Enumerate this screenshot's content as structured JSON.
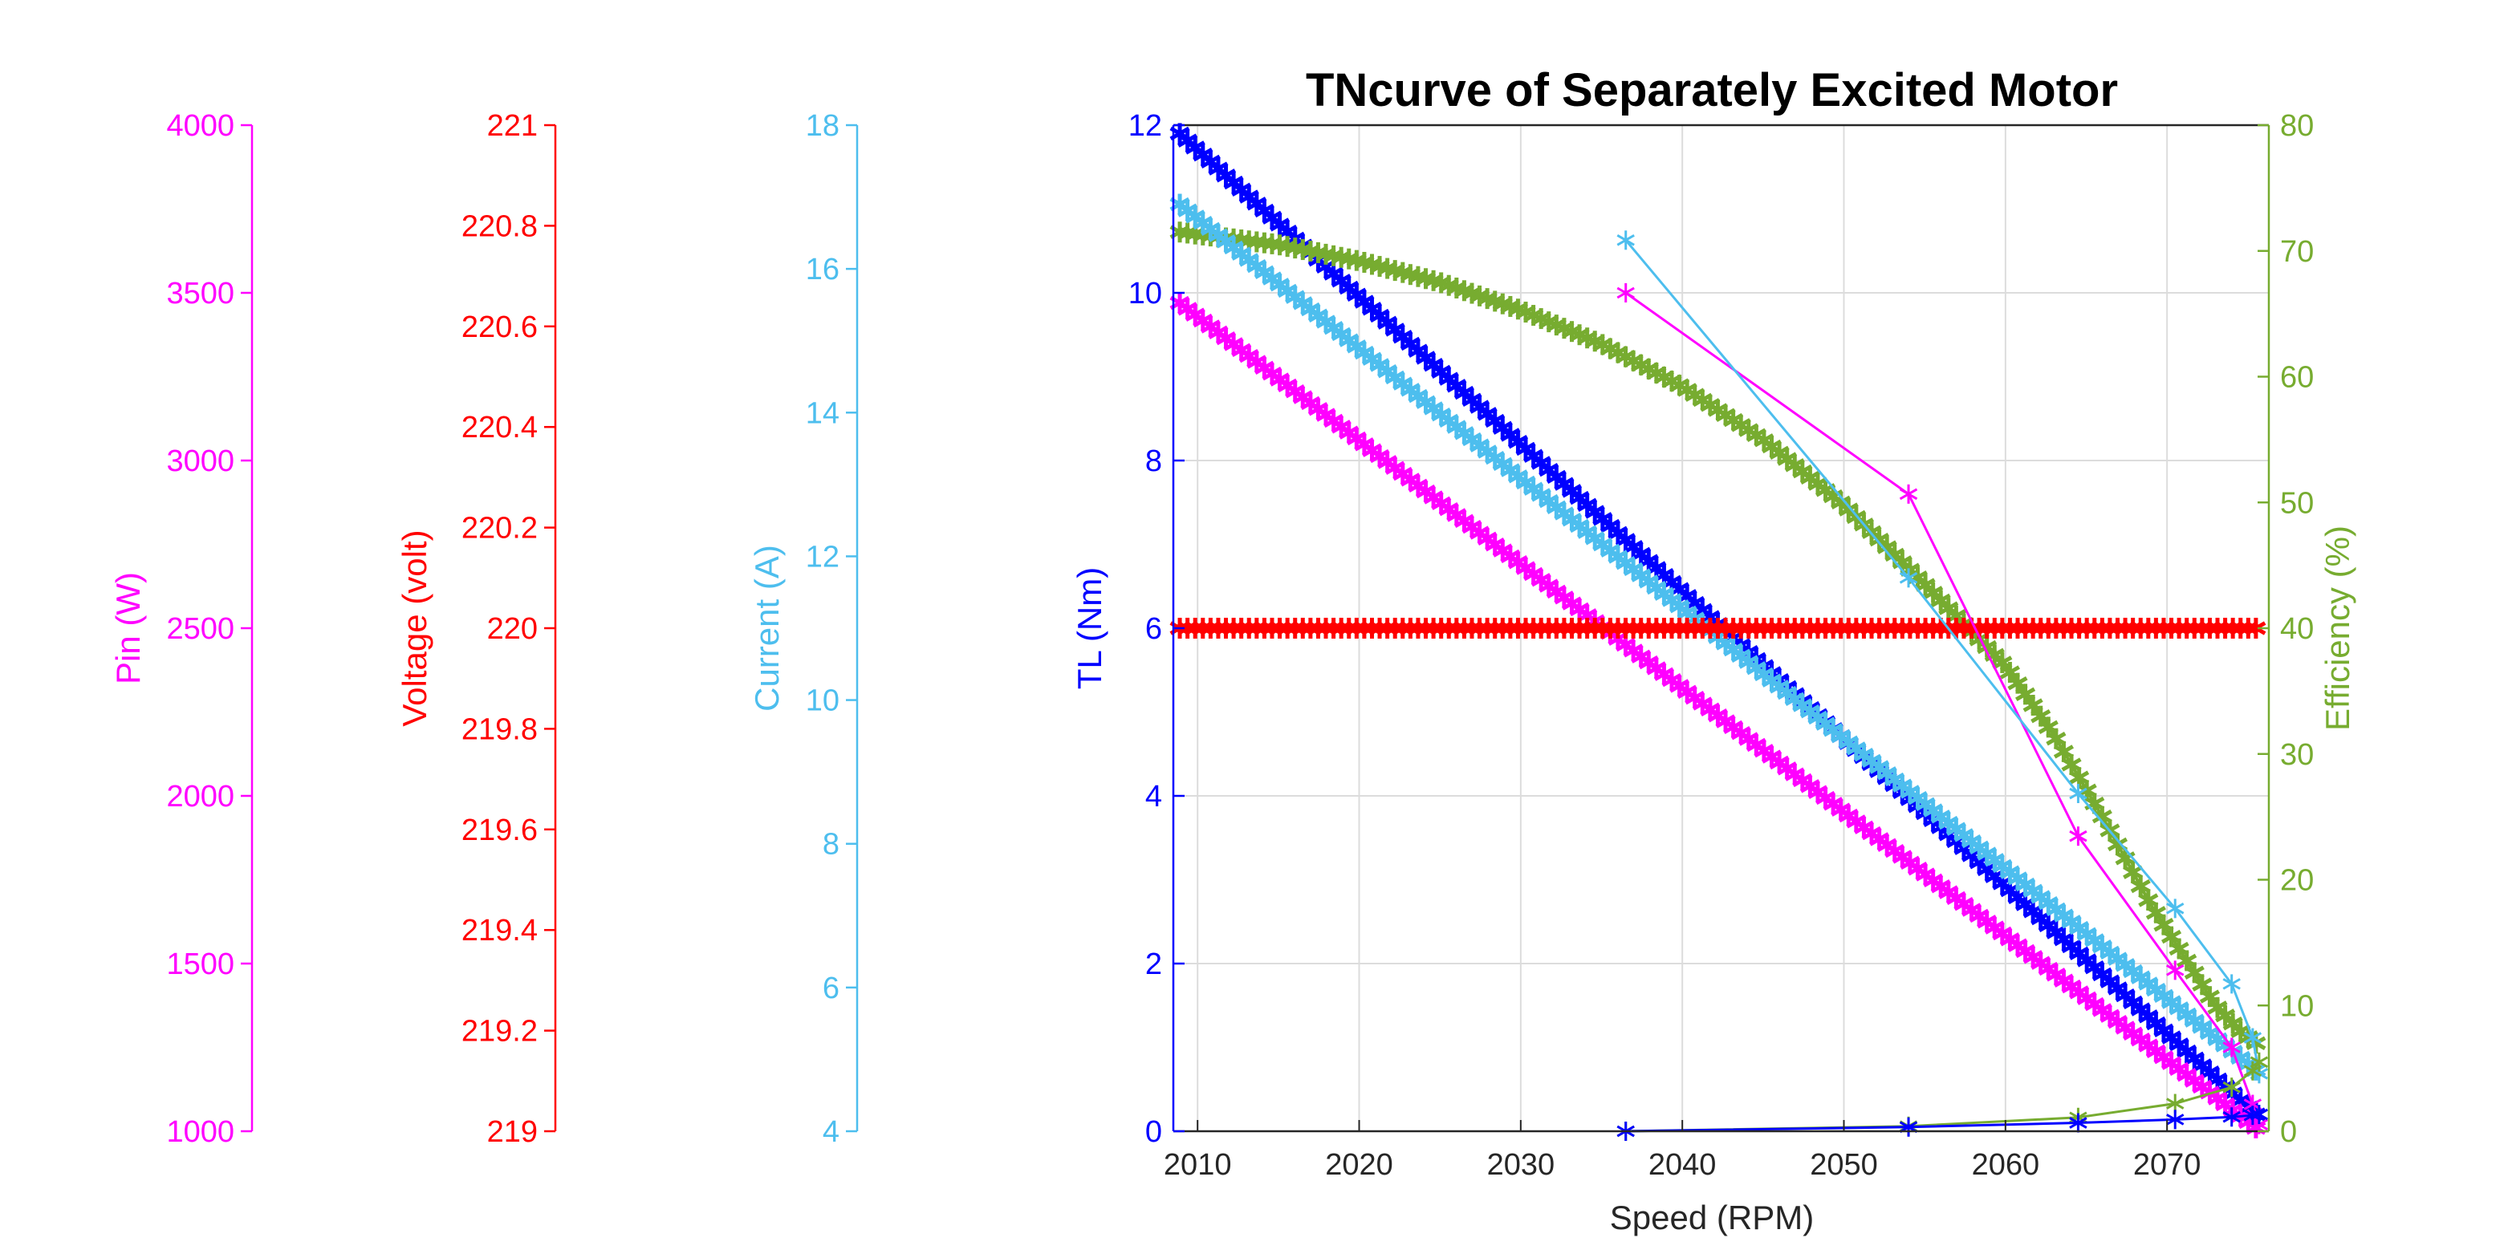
{
  "chart_data": {
    "type": "line",
    "title": "TNcurve of Separately Excited Motor",
    "xlabel": "Speed (RPM)",
    "xlim": [
      2008.5,
      2076.3
    ],
    "xticks": [
      2010,
      2020,
      2030,
      2040,
      2050,
      2060,
      2070
    ],
    "grid": true,
    "axes": [
      {
        "id": "tl",
        "label": "TL (Nm)",
        "color": "#0000ff",
        "side": "left",
        "range": [
          0,
          12
        ],
        "ticks": [
          0,
          2,
          4,
          6,
          8,
          10,
          12
        ]
      },
      {
        "id": "eff",
        "label": "Efficiency (%)",
        "color": "#77ac30",
        "side": "right",
        "range": [
          0,
          80
        ],
        "ticks": [
          0,
          10,
          20,
          30,
          40,
          50,
          60,
          70,
          80
        ]
      },
      {
        "id": "cur",
        "label": "Current (A)",
        "color": "#4dbeee",
        "side": "left-offset",
        "range": [
          4,
          18
        ],
        "ticks": [
          4,
          6,
          8,
          10,
          12,
          14,
          16,
          18
        ]
      },
      {
        "id": "volt",
        "label": "Voltage (volt)",
        "color": "#ff0000",
        "side": "left-offset",
        "range": [
          219,
          221
        ],
        "ticks": [
          "219",
          "219.2",
          "219.4",
          "219.6",
          "219.8",
          "220",
          "220.2",
          "220.4",
          "220.6",
          "220.8",
          "221"
        ]
      },
      {
        "id": "pin",
        "label": "Pin (W)",
        "color": "#ff00ff",
        "side": "left-offset",
        "range": [
          1000,
          4000
        ],
        "ticks": [
          1000,
          1500,
          2000,
          2500,
          3000,
          3500,
          4000
        ]
      }
    ],
    "series": [
      {
        "axis": "tl",
        "color": "#0000ff",
        "marker": "asterisk",
        "dense": true,
        "x": [
          2008.9,
          2075.5
        ],
        "y": [
          11.9,
          0.2
        ]
      },
      {
        "axis": "eff",
        "color": "#77ac30",
        "marker": "asterisk",
        "dense": true,
        "x": [
          2008.9,
          2015,
          2020,
          2025,
          2030,
          2035,
          2040,
          2045,
          2050,
          2055,
          2060,
          2063,
          2066,
          2069,
          2071,
          2073,
          2074.5,
          2075.5
        ],
        "y": [
          71.5,
          70.5,
          69.2,
          67.5,
          65.3,
          62.6,
          59.2,
          55.0,
          49.8,
          43.5,
          37.0,
          31.5,
          25.0,
          18.0,
          14.0,
          10.0,
          8.0,
          7.0
        ]
      },
      {
        "axis": "cur",
        "color": "#4dbeee",
        "marker": "asterisk",
        "dense": true,
        "x": [
          2008.9,
          2075.5
        ],
        "y": [
          16.9,
          4.85
        ]
      },
      {
        "axis": "pin",
        "color": "#ff00ff",
        "marker": "asterisk",
        "dense": true,
        "x": [
          2008.9,
          2075.5
        ],
        "y": [
          3470,
          1010
        ]
      },
      {
        "axis": "volt",
        "color": "#ff0000",
        "marker": "asterisk",
        "dense": true,
        "x": [
          2008.9,
          2075.5
        ],
        "y": [
          220,
          220
        ]
      },
      {
        "axis": "pin",
        "color": "#ff00ff",
        "marker": "asterisk",
        "dense": false,
        "x": [
          2036.5,
          2054.0,
          2064.5,
          2070.5,
          2074.0,
          2075.3,
          2075.7
        ],
        "y": [
          3500,
          2900,
          1880,
          1480,
          1250,
          1080,
          1020
        ]
      },
      {
        "axis": "cur",
        "color": "#4dbeee",
        "marker": "asterisk",
        "dense": false,
        "x": [
          2036.5,
          2054.0,
          2064.5,
          2070.5,
          2074.0,
          2075.3,
          2075.7
        ],
        "y": [
          16.4,
          11.7,
          8.7,
          7.1,
          6.05,
          5.3,
          4.8
        ]
      },
      {
        "axis": "eff",
        "color": "#77ac30",
        "marker": "asterisk",
        "dense": false,
        "x": [
          2036.5,
          2054.0,
          2064.5,
          2070.5,
          2074.0,
          2075.3,
          2075.7
        ],
        "y": [
          0.0,
          0.4,
          1.1,
          2.2,
          3.5,
          4.8,
          5.5
        ]
      },
      {
        "axis": "tl",
        "color": "#0000ff",
        "marker": "asterisk",
        "dense": false,
        "x": [
          2036.5,
          2054.0,
          2064.5,
          2070.5,
          2074.0,
          2075.3,
          2075.7
        ],
        "y": [
          0.0,
          0.05,
          0.1,
          0.14,
          0.17,
          0.19,
          0.2
        ]
      }
    ]
  }
}
